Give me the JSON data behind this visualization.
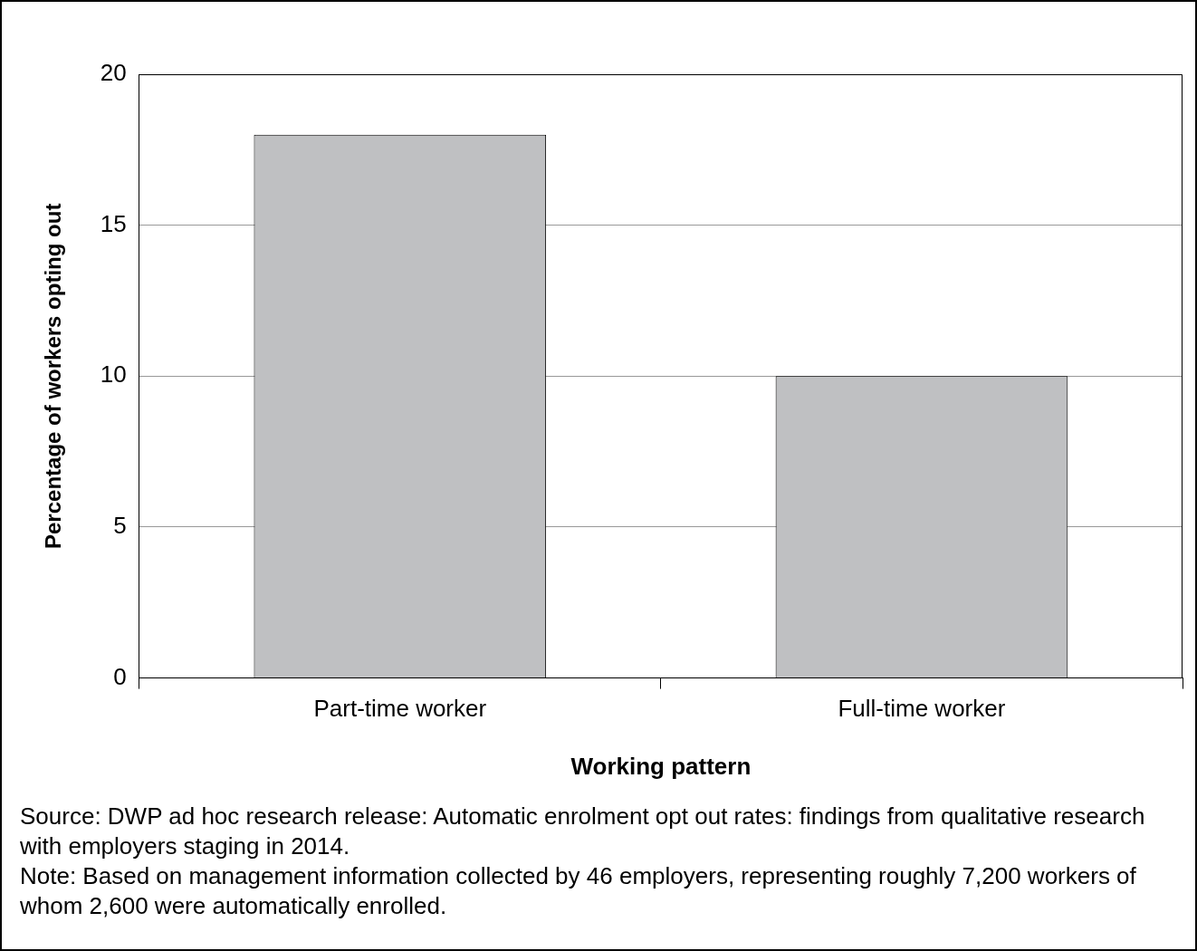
{
  "chart_data": {
    "type": "bar",
    "xlabel": "Working pattern",
    "ylabel": "Percentage of workers opting out",
    "categories": [
      "Part-time worker",
      "Full-time worker"
    ],
    "values": [
      18,
      10
    ],
    "color": "#bfc0c2",
    "ylim": [
      0,
      20
    ],
    "yticks": [
      0,
      5,
      10,
      15,
      20
    ],
    "grid": "y",
    "annotations": [
      "Source: DWP ad hoc research release: Automatic enrolment opt out rates: findings from qualitative research with employers staging in 2014.",
      "Note: Based on management information collected by 46 employers, representing roughly 7,200 workers of whom 2,600 were automatically enrolled."
    ]
  }
}
